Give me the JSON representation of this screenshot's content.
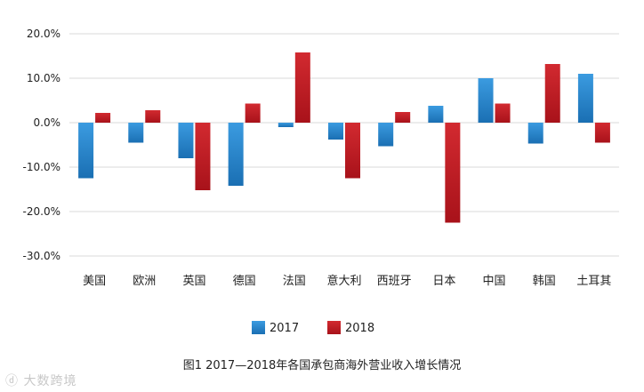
{
  "chart_data": {
    "type": "bar",
    "title": "",
    "xlabel": "",
    "ylabel": "",
    "categories": [
      "美国",
      "欧洲",
      "英国",
      "德国",
      "法国",
      "意大利",
      "西班牙",
      "日本",
      "中国",
      "韩国",
      "土耳其"
    ],
    "series": [
      {
        "name": "2017",
        "color": "#1f7fc6",
        "values": [
          -12.5,
          -4.5,
          -8.0,
          -14.2,
          -1.0,
          -3.8,
          -5.3,
          3.8,
          10.0,
          -4.7,
          11.0
        ]
      },
      {
        "name": "2018",
        "color": "#c01a22",
        "values": [
          2.2,
          2.8,
          -15.2,
          4.3,
          15.8,
          -12.5,
          2.4,
          -22.5,
          4.3,
          13.2,
          -4.5
        ]
      }
    ],
    "ylim": [
      -30,
      20
    ],
    "yticks": [
      20,
      10,
      0,
      -10,
      -20,
      -30
    ],
    "ytick_labels": [
      "20.0%",
      "10.0%",
      "0.0%",
      "-10.0%",
      "-20.0%",
      "-30.0%"
    ],
    "grid": true,
    "legend": "bottom-center"
  },
  "caption": "图1   2017—2018年各国承包商海外营业收入增长情况",
  "watermark": "大数跨境"
}
